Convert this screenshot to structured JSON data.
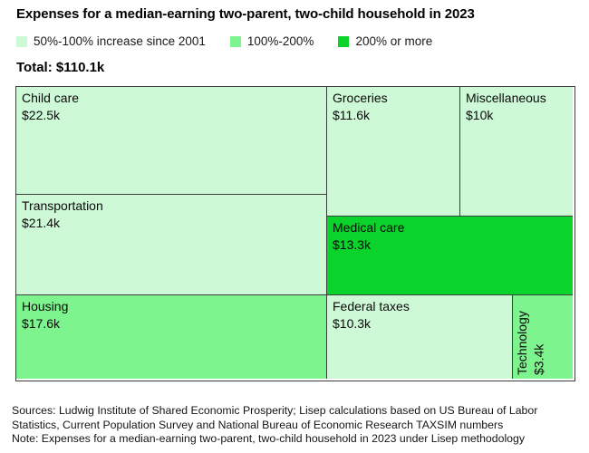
{
  "title": "Expenses for a median-earning two-parent, two-child household in 2023",
  "legend": {
    "items": [
      {
        "label": "50%-100% increase since 2001",
        "color": "#cdf9d7"
      },
      {
        "label": "100%-200%",
        "color": "#7df48d"
      },
      {
        "label": "200% or more",
        "color": "#0ad32b"
      }
    ]
  },
  "total_label": "Total: $110.1k",
  "chart_data": {
    "type": "treemap",
    "title": "Expenses for a median-earning two-parent, two-child household in 2023",
    "total_label": "Total: $110.1k",
    "total_value_k_usd": 110.1,
    "unit": "thousand USD per year",
    "legend_title": "increase since 2001",
    "categories": [
      "50%-100% increase since 2001",
      "100%-200%",
      "200% or more"
    ],
    "category_colors": [
      "#cdf9d7",
      "#7df48d",
      "#0ad32b"
    ],
    "items": [
      {
        "name": "Child care",
        "value_label": "$22.5k",
        "value_k": 22.5,
        "category": "50%-100% increase since 2001",
        "color": "#cdf9d7"
      },
      {
        "name": "Transportation",
        "value_label": "$21.4k",
        "value_k": 21.4,
        "category": "50%-100% increase since 2001",
        "color": "#cdf9d7"
      },
      {
        "name": "Housing",
        "value_label": "$17.6k",
        "value_k": 17.6,
        "category": "100%-200%",
        "color": "#7df48d"
      },
      {
        "name": "Groceries",
        "value_label": "$11.6k",
        "value_k": 11.6,
        "category": "50%-100% increase since 2001",
        "color": "#cdf9d7"
      },
      {
        "name": "Miscellaneous",
        "value_label": "$10k",
        "value_k": 10.0,
        "category": "50%-100% increase since 2001",
        "color": "#cdf9d7"
      },
      {
        "name": "Medical care",
        "value_label": "$13.3k",
        "value_k": 13.3,
        "category": "200% or more",
        "color": "#0ad32b"
      },
      {
        "name": "Federal taxes",
        "value_label": "$10.3k",
        "value_k": 10.3,
        "category": "50%-100% increase since 2001",
        "color": "#cdf9d7"
      },
      {
        "name": "Technology",
        "value_label": "$3.4k",
        "value_k": 3.4,
        "category": "100%-200%",
        "color": "#7df48d"
      }
    ]
  },
  "footer": {
    "sources_line1": "Sources: Ludwig Institute of Shared Economic Prosperity; Lisep calculations based on US Bureau of Labor",
    "sources_line2": "Statistics, Current Population Survey and National Bureau of Economic Research TAXSIM numbers",
    "note": "Note: Expenses for a median-earning two-parent, two-child household in 2023 under Lisep methodology"
  }
}
